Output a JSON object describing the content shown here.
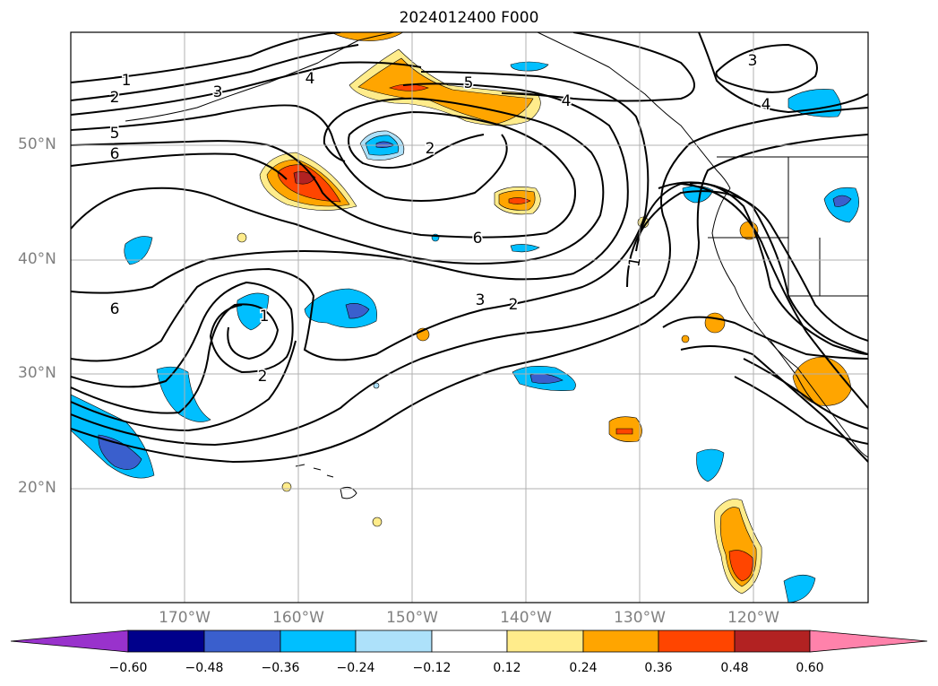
{
  "title": "2024012400 F000",
  "map": {
    "lat_labels": [
      "50°N",
      "40°N",
      "30°N",
      "20°N"
    ],
    "lon_labels": [
      "170°W",
      "160°W",
      "150°W",
      "140°W",
      "130°W",
      "120°W"
    ],
    "contour_labels": [
      "1",
      "2",
      "3",
      "4",
      "5",
      "6",
      "2",
      "6",
      "3",
      "2",
      "2",
      "1",
      "3",
      "4",
      "5",
      "4",
      "1"
    ]
  },
  "colorbar": {
    "ticks": [
      "−0.60",
      "−0.48",
      "−0.36",
      "−0.24",
      "−0.12",
      "0.12",
      "0.24",
      "0.36",
      "0.48",
      "0.60"
    ],
    "colors": [
      "#9932CC",
      "#00008B",
      "#3A5FCD",
      "#00BFFF",
      "#ADE1FA",
      "#FFFFFF",
      "#FFEC8B",
      "#FFA500",
      "#FF4500",
      "#B22222",
      "#FF82AB"
    ]
  }
}
